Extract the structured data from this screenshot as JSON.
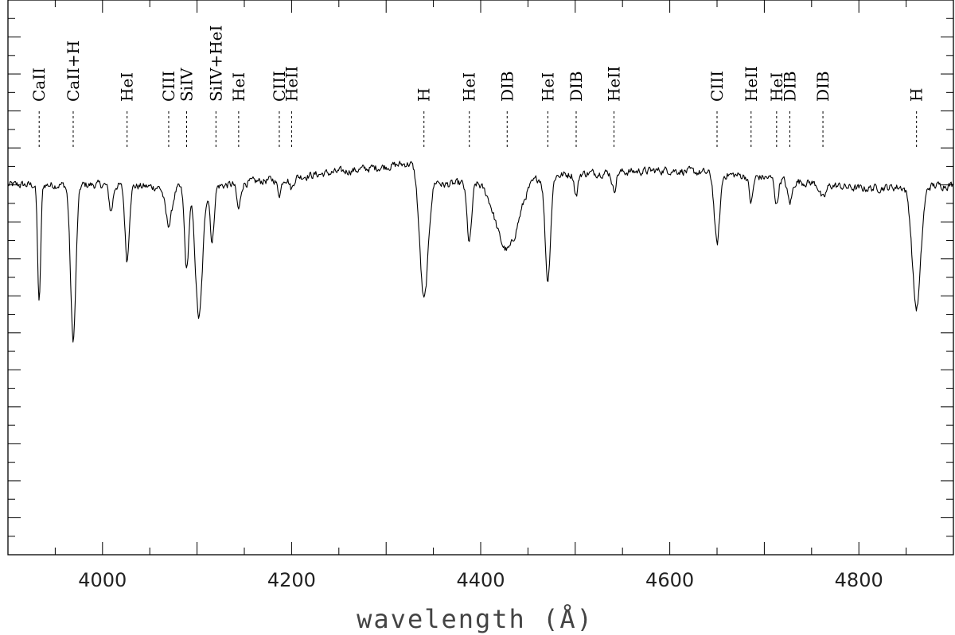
{
  "chart_data": {
    "type": "line",
    "xlabel": "wavelength (Å)",
    "ylabel": "",
    "xlim": [
      3900,
      4900
    ],
    "ylim": [
      0,
      1.5
    ],
    "x_ticks": [
      4000,
      4200,
      4400,
      4600,
      4800
    ],
    "x_tick_labels": [
      "4000",
      "4200",
      "4400",
      "4600",
      "4800"
    ],
    "continuum": 1.0,
    "lines": [
      {
        "label": "CaII",
        "x": 3933
      },
      {
        "label": "CaII+H",
        "x": 3969
      },
      {
        "label": "HeI",
        "x": 4026
      },
      {
        "label": "CIII",
        "x": 4070
      },
      {
        "label": "SiIV",
        "x": 4089
      },
      {
        "label": "SiIV+HeI",
        "x": 4120
      },
      {
        "label": "HeI",
        "x": 4144
      },
      {
        "label": "CIII",
        "x": 4187
      },
      {
        "label": "HeII",
        "x": 4200
      },
      {
        "label": "H",
        "x": 4340
      },
      {
        "label": "HeI",
        "x": 4388
      },
      {
        "label": "DIB",
        "x": 4428
      },
      {
        "label": "HeI",
        "x": 4471
      },
      {
        "label": "DIB",
        "x": 4501
      },
      {
        "label": "HeII",
        "x": 4541
      },
      {
        "label": "CIII",
        "x": 4650
      },
      {
        "label": "HeII",
        "x": 4686
      },
      {
        "label": "HeI",
        "x": 4713
      },
      {
        "label": "DIB",
        "x": 4727
      },
      {
        "label": "DIB",
        "x": 4762
      },
      {
        "label": "H",
        "x": 4861
      }
    ],
    "absorption_features": [
      {
        "x": 3933,
        "depth": 0.32,
        "width": 1.6
      },
      {
        "x": 3969,
        "depth": 0.42,
        "width": 2.8
      },
      {
        "x": 4009,
        "depth": 0.07,
        "width": 2.0
      },
      {
        "x": 4026,
        "depth": 0.2,
        "width": 2.2
      },
      {
        "x": 4070,
        "depth": 0.1,
        "width": 3.5
      },
      {
        "x": 4089,
        "depth": 0.22,
        "width": 2.2
      },
      {
        "x": 4102,
        "depth": 0.35,
        "width": 3.8
      },
      {
        "x": 4116,
        "depth": 0.15,
        "width": 2.0
      },
      {
        "x": 4144,
        "depth": 0.07,
        "width": 2.0
      },
      {
        "x": 4187,
        "depth": 0.04,
        "width": 2.0
      },
      {
        "x": 4200,
        "depth": 0.03,
        "width": 2.0
      },
      {
        "x": 4340,
        "depth": 0.35,
        "width": 4.5
      },
      {
        "x": 4388,
        "depth": 0.16,
        "width": 2.5
      },
      {
        "x": 4428,
        "depth": 0.19,
        "width": 12.0
      },
      {
        "x": 4471,
        "depth": 0.28,
        "width": 2.8
      },
      {
        "x": 4501,
        "depth": 0.06,
        "width": 1.8
      },
      {
        "x": 4541,
        "depth": 0.05,
        "width": 2.0
      },
      {
        "x": 4650,
        "depth": 0.19,
        "width": 2.8
      },
      {
        "x": 4686,
        "depth": 0.07,
        "width": 2.0
      },
      {
        "x": 4713,
        "depth": 0.07,
        "width": 1.8
      },
      {
        "x": 4727,
        "depth": 0.06,
        "width": 2.5
      },
      {
        "x": 4762,
        "depth": 0.04,
        "width": 3.0
      },
      {
        "x": 4861,
        "depth": 0.33,
        "width": 4.5
      }
    ],
    "continuum_shape": [
      [
        3900,
        1.0
      ],
      [
        4000,
        1.0
      ],
      [
        4100,
        0.99
      ],
      [
        4200,
        1.02
      ],
      [
        4300,
        1.05
      ],
      [
        4330,
        1.06
      ],
      [
        4360,
        1.0
      ],
      [
        4500,
        1.03
      ],
      [
        4600,
        1.04
      ],
      [
        4700,
        1.02
      ],
      [
        4800,
        0.99
      ],
      [
        4900,
        1.0
      ]
    ]
  }
}
